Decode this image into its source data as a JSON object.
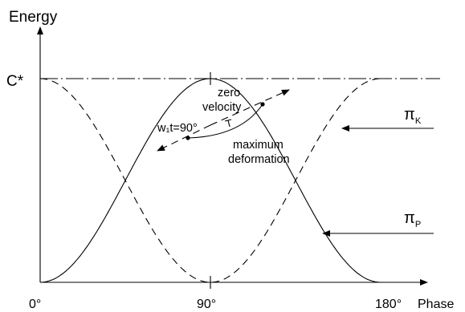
{
  "axes": {
    "y_title": "Energy",
    "x_title": "Phase",
    "y_max_label": "C*",
    "x_ticks": [
      "0°",
      "90°",
      "180°"
    ]
  },
  "annotations": {
    "zero": "zero",
    "velocity": "velocity",
    "wt": "w₁t=90°",
    "maximum": "maximum",
    "deformation": "deformation"
  },
  "curves": {
    "pi_k": {
      "symbol": "π",
      "subscript": "K"
    },
    "pi_p": {
      "symbol": "π",
      "subscript": "P"
    }
  }
}
